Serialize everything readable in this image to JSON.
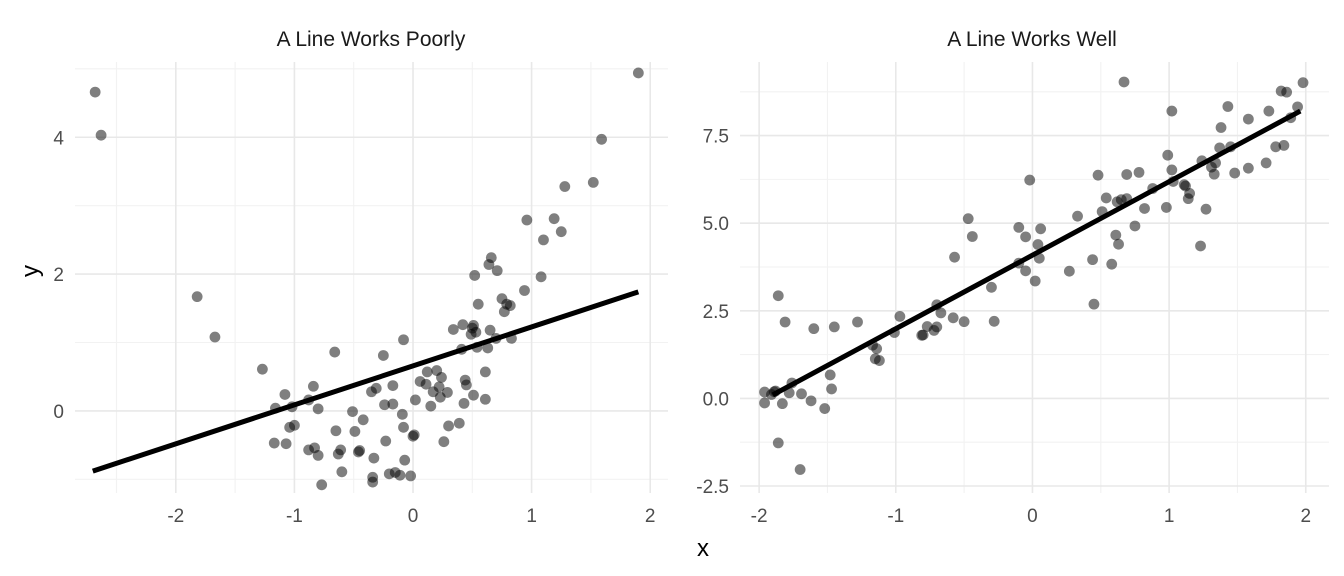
{
  "figure": {
    "xlabel": "x",
    "ylabel": "y"
  },
  "chart_data": [
    {
      "type": "scatter",
      "title": "A Line Works Poorly",
      "xlim": [
        -2.85,
        2.15
      ],
      "ylim": [
        -1.2,
        5.1
      ],
      "x_ticks": [
        -2,
        -1,
        0,
        1,
        2
      ],
      "x_tick_labels": [
        "-2",
        "-1",
        "0",
        "1",
        "2"
      ],
      "y_ticks": [
        0,
        2,
        4
      ],
      "y_tick_labels": [
        "0",
        "2",
        "4"
      ],
      "grid": true,
      "point_color": "#000000",
      "line_color": "#000000",
      "points": [
        [
          -2.68,
          4.66
        ],
        [
          -2.63,
          4.03
        ],
        [
          -1.82,
          1.67
        ],
        [
          -1.67,
          1.08
        ],
        [
          -1.27,
          0.61
        ],
        [
          -1.16,
          0.04
        ],
        [
          -1.17,
          -0.47
        ],
        [
          -1.08,
          0.24
        ],
        [
          -1.07,
          -0.48
        ],
        [
          -1.04,
          -0.24
        ],
        [
          -1.02,
          0.06
        ],
        [
          -1.0,
          -0.21
        ],
        [
          -0.88,
          0.16
        ],
        [
          -0.88,
          -0.57
        ],
        [
          -0.84,
          0.36
        ],
        [
          -0.83,
          -0.54
        ],
        [
          -0.8,
          0.03
        ],
        [
          -0.8,
          -0.65
        ],
        [
          -0.77,
          -1.08
        ],
        [
          -0.66,
          0.86
        ],
        [
          -0.65,
          -0.29
        ],
        [
          -0.63,
          -0.63
        ],
        [
          -0.61,
          -0.57
        ],
        [
          -0.6,
          -0.89
        ],
        [
          -0.51,
          -0.01
        ],
        [
          -0.49,
          -0.3
        ],
        [
          -0.46,
          -0.6
        ],
        [
          -0.45,
          -0.58
        ],
        [
          -0.42,
          -0.13
        ],
        [
          -0.35,
          0.28
        ],
        [
          -0.34,
          -0.97
        ],
        [
          -0.34,
          -1.04
        ],
        [
          -0.33,
          -0.69
        ],
        [
          -0.31,
          0.33
        ],
        [
          -0.25,
          0.81
        ],
        [
          -0.24,
          0.09
        ],
        [
          -0.23,
          -0.44
        ],
        [
          -0.2,
          -0.92
        ],
        [
          -0.17,
          0.37
        ],
        [
          -0.17,
          0.1
        ],
        [
          -0.15,
          -0.9
        ],
        [
          -0.11,
          -0.94
        ],
        [
          -0.09,
          -0.05
        ],
        [
          -0.08,
          -0.24
        ],
        [
          -0.08,
          1.04
        ],
        [
          -0.07,
          -0.72
        ],
        [
          -0.02,
          -0.95
        ],
        [
          0.0,
          -0.37
        ],
        [
          0.01,
          -0.35
        ],
        [
          0.02,
          0.16
        ],
        [
          0.06,
          0.43
        ],
        [
          0.11,
          0.39
        ],
        [
          0.12,
          0.57
        ],
        [
          0.15,
          0.07
        ],
        [
          0.17,
          0.28
        ],
        [
          0.2,
          0.59
        ],
        [
          0.22,
          0.35
        ],
        [
          0.23,
          0.2
        ],
        [
          0.24,
          0.49
        ],
        [
          0.26,
          -0.45
        ],
        [
          0.29,
          0.27
        ],
        [
          0.3,
          -0.22
        ],
        [
          0.34,
          1.19
        ],
        [
          0.39,
          -0.18
        ],
        [
          0.41,
          0.9
        ],
        [
          0.42,
          1.26
        ],
        [
          0.43,
          0.11
        ],
        [
          0.44,
          0.45
        ],
        [
          0.45,
          0.38
        ],
        [
          0.49,
          1.12
        ],
        [
          0.5,
          1.21
        ],
        [
          0.51,
          0.23
        ],
        [
          0.51,
          1.25
        ],
        [
          0.52,
          1.98
        ],
        [
          0.53,
          1.15
        ],
        [
          0.54,
          0.93
        ],
        [
          0.55,
          1.56
        ],
        [
          0.61,
          0.57
        ],
        [
          0.61,
          0.17
        ],
        [
          0.63,
          0.92
        ],
        [
          0.64,
          2.14
        ],
        [
          0.65,
          1.18
        ],
        [
          0.66,
          2.24
        ],
        [
          0.7,
          1.06
        ],
        [
          0.71,
          2.05
        ],
        [
          0.75,
          1.64
        ],
        [
          0.77,
          1.45
        ],
        [
          0.79,
          1.56
        ],
        [
          0.82,
          1.54
        ],
        [
          0.83,
          1.06
        ],
        [
          0.94,
          1.76
        ],
        [
          0.96,
          2.79
        ],
        [
          1.08,
          1.96
        ],
        [
          1.1,
          2.5
        ],
        [
          1.19,
          2.81
        ],
        [
          1.25,
          2.62
        ],
        [
          1.28,
          3.28
        ],
        [
          1.52,
          3.34
        ],
        [
          1.59,
          3.97
        ],
        [
          1.9,
          4.94
        ]
      ],
      "fit_line": {
        "x": [
          -2.7,
          1.9
        ],
        "y": [
          -0.88,
          1.74
        ]
      }
    },
    {
      "type": "scatter",
      "title": "A Line Works Well",
      "xlim": [
        -2.14,
        2.17
      ],
      "ylim": [
        -2.7,
        9.6
      ],
      "x_ticks": [
        -2,
        -1,
        0,
        1,
        2
      ],
      "x_tick_labels": [
        "-2",
        "-1",
        "0",
        "1",
        "2"
      ],
      "y_ticks": [
        -2.5,
        0,
        2.5,
        5,
        7.5
      ],
      "y_tick_labels": [
        "-2.5",
        "0.0",
        "2.5",
        "5.0",
        "7.5"
      ],
      "grid": true,
      "point_color": "#000000",
      "line_color": "#000000",
      "points": [
        [
          -1.96,
          0.18
        ],
        [
          -1.96,
          -0.13
        ],
        [
          -1.91,
          0.11
        ],
        [
          -1.89,
          0.19
        ],
        [
          -1.88,
          0.21
        ],
        [
          -1.86,
          -1.27
        ],
        [
          -1.86,
          2.93
        ],
        [
          -1.83,
          -0.15
        ],
        [
          -1.81,
          2.18
        ],
        [
          -1.78,
          0.16
        ],
        [
          -1.76,
          0.44
        ],
        [
          -1.7,
          -2.03
        ],
        [
          -1.69,
          0.13
        ],
        [
          -1.62,
          -0.07
        ],
        [
          -1.6,
          1.99
        ],
        [
          -1.52,
          -0.29
        ],
        [
          -1.48,
          0.67
        ],
        [
          -1.47,
          0.27
        ],
        [
          -1.45,
          2.04
        ],
        [
          -1.28,
          2.18
        ],
        [
          -1.17,
          1.52
        ],
        [
          -1.15,
          1.13
        ],
        [
          -1.14,
          1.42
        ],
        [
          -1.12,
          1.08
        ],
        [
          -1.01,
          1.88
        ],
        [
          -0.97,
          2.34
        ],
        [
          -0.81,
          1.8
        ],
        [
          -0.8,
          1.81
        ],
        [
          -0.77,
          2.05
        ],
        [
          -0.72,
          1.94
        ],
        [
          -0.7,
          2.04
        ],
        [
          -0.7,
          2.67
        ],
        [
          -0.67,
          2.44
        ],
        [
          -0.58,
          2.3
        ],
        [
          -0.57,
          4.03
        ],
        [
          -0.5,
          2.19
        ],
        [
          -0.47,
          5.13
        ],
        [
          -0.44,
          4.62
        ],
        [
          -0.3,
          3.17
        ],
        [
          -0.28,
          2.2
        ],
        [
          -0.1,
          4.88
        ],
        [
          -0.1,
          3.86
        ],
        [
          -0.05,
          4.61
        ],
        [
          -0.05,
          3.64
        ],
        [
          -0.02,
          6.23
        ],
        [
          0.02,
          3.35
        ],
        [
          0.04,
          4.39
        ],
        [
          0.05,
          4.0
        ],
        [
          0.06,
          4.84
        ],
        [
          0.27,
          3.63
        ],
        [
          0.33,
          5.2
        ],
        [
          0.44,
          3.96
        ],
        [
          0.45,
          2.69
        ],
        [
          0.48,
          6.37
        ],
        [
          0.51,
          5.33
        ],
        [
          0.54,
          5.72
        ],
        [
          0.58,
          3.83
        ],
        [
          0.61,
          4.66
        ],
        [
          0.62,
          5.61
        ],
        [
          0.63,
          4.4
        ],
        [
          0.65,
          5.67
        ],
        [
          0.67,
          9.03
        ],
        [
          0.69,
          5.7
        ],
        [
          0.69,
          6.39
        ],
        [
          0.75,
          4.92
        ],
        [
          0.78,
          6.45
        ],
        [
          0.82,
          5.42
        ],
        [
          0.88,
          5.99
        ],
        [
          0.98,
          5.45
        ],
        [
          0.99,
          6.94
        ],
        [
          1.02,
          6.52
        ],
        [
          1.02,
          8.2
        ],
        [
          1.03,
          6.19
        ],
        [
          1.11,
          6.1
        ],
        [
          1.12,
          6.06
        ],
        [
          1.14,
          5.7
        ],
        [
          1.15,
          5.85
        ],
        [
          1.23,
          4.35
        ],
        [
          1.24,
          6.78
        ],
        [
          1.27,
          5.4
        ],
        [
          1.31,
          6.6
        ],
        [
          1.33,
          6.4
        ],
        [
          1.34,
          6.72
        ],
        [
          1.37,
          7.15
        ],
        [
          1.38,
          7.73
        ],
        [
          1.43,
          8.33
        ],
        [
          1.45,
          7.18
        ],
        [
          1.48,
          6.43
        ],
        [
          1.58,
          6.57
        ],
        [
          1.58,
          7.97
        ],
        [
          1.71,
          6.72
        ],
        [
          1.73,
          8.2
        ],
        [
          1.78,
          7.18
        ],
        [
          1.82,
          8.77
        ],
        [
          1.84,
          7.22
        ],
        [
          1.86,
          8.74
        ],
        [
          1.89,
          8.01
        ],
        [
          1.94,
          8.32
        ],
        [
          1.98,
          9.01
        ]
      ],
      "fit_line": {
        "x": [
          -1.9,
          1.96
        ],
        "y": [
          0.1,
          8.2
        ]
      }
    }
  ]
}
